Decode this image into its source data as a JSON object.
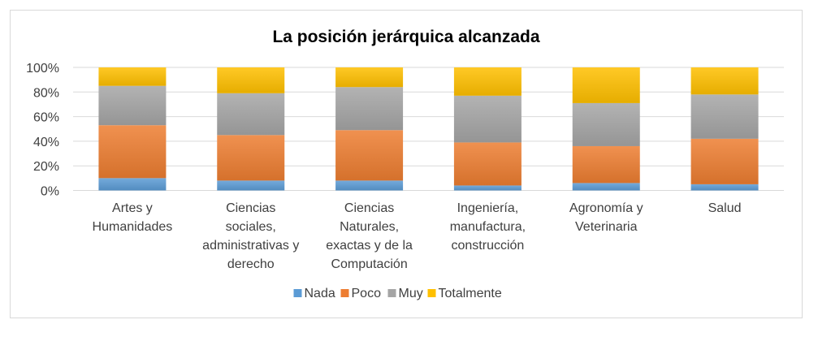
{
  "chart_data": {
    "type": "bar",
    "stacked": true,
    "percent": true,
    "title": "La posición jerárquica alcanzada",
    "categories": [
      [
        "Artes y",
        "Humanidades"
      ],
      [
        "Ciencias",
        "sociales,",
        "administrativas y",
        "derecho"
      ],
      [
        "Ciencias",
        "Naturales,",
        "exactas y de la",
        "Computación"
      ],
      [
        "Ingeniería,",
        "manufactura,",
        "construcción"
      ],
      [
        "Agronomía y",
        "Veterinaria"
      ],
      [
        "Salud"
      ]
    ],
    "series": [
      {
        "name": "Nada",
        "color": "#5B9BD5",
        "values": [
          10,
          8,
          8,
          4,
          6,
          5
        ]
      },
      {
        "name": "Poco",
        "color": "#ED7D31",
        "values": [
          43,
          37,
          41,
          35,
          30,
          37
        ]
      },
      {
        "name": "Muy",
        "color": "#A5A5A5",
        "values": [
          32,
          34,
          35,
          38,
          35,
          36
        ]
      },
      {
        "name": "Totalmente",
        "color": "#FFC000",
        "values": [
          15,
          21,
          16,
          23,
          29,
          22
        ]
      }
    ],
    "yticks": [
      "0%",
      "20%",
      "40%",
      "60%",
      "80%",
      "100%"
    ],
    "ylim": [
      0,
      100
    ],
    "grid": true,
    "legend": "bottom"
  }
}
